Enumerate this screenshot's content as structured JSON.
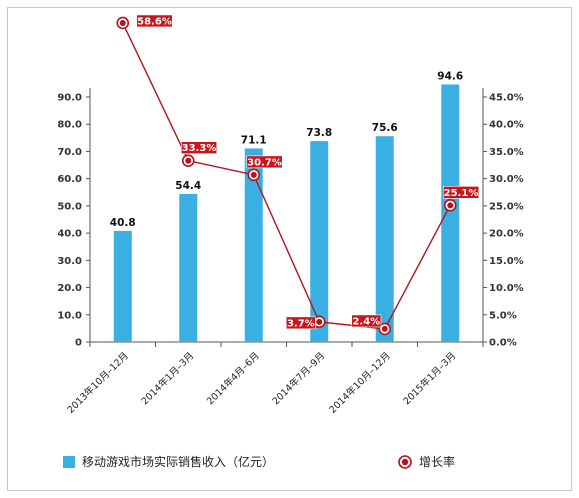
{
  "chart_data": {
    "type": "bar",
    "categories": [
      "2013年10月–12月",
      "2014年1月–3月",
      "2014年4月–6月",
      "2014年7月–9月",
      "2014年10月–12月",
      "2015年1月–3月"
    ],
    "series": [
      {
        "name": "移动游戏市场实际销售收入（亿元）",
        "type": "bar",
        "axis": "left",
        "values": [
          40.8,
          54.4,
          71.1,
          73.8,
          75.6,
          94.6
        ],
        "labels": [
          "40.8",
          "54.4",
          "71.1",
          "73.8",
          "75.6",
          "94.6"
        ],
        "color": "#3ab0e2"
      },
      {
        "name": "增长率",
        "type": "line",
        "axis": "right",
        "values": [
          58.6,
          33.3,
          30.7,
          3.7,
          2.4,
          25.1
        ],
        "labels": [
          "58.6%",
          "33.3%",
          "30.7%",
          "3.7%",
          "2.4%",
          "25.1%"
        ],
        "color": "#b5121b"
      }
    ],
    "y_left": {
      "range": [
        0,
        90
      ],
      "ticks": [
        "0",
        "10.0",
        "20.0",
        "30.0",
        "40.0",
        "50.0",
        "60.0",
        "70.0",
        "80.0",
        "90.0"
      ]
    },
    "y_right": {
      "range": [
        0,
        45
      ],
      "ticks": [
        "0.0%",
        "5.0%",
        "10.0%",
        "15.0%",
        "20.0%",
        "25.0%",
        "30.0%",
        "35.0%",
        "40.0%",
        "45.0%"
      ]
    },
    "grid": false,
    "legend_position": "bottom",
    "colors": {
      "bar": "#3ab0e2",
      "line": "#b5121b",
      "label_bg": "#c8161d",
      "axis": "#555555",
      "frame": "#c8c8c8"
    }
  }
}
